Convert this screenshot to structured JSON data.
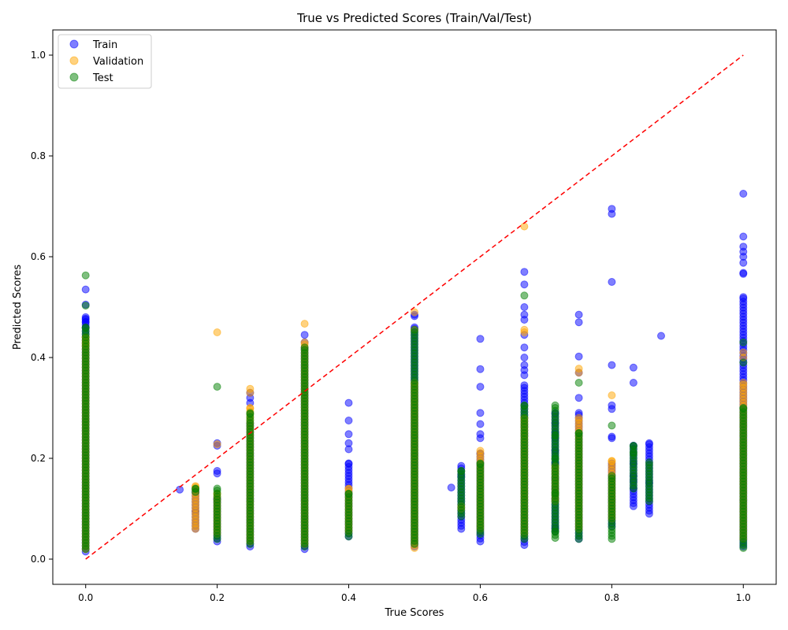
{
  "chart_data": {
    "type": "scatter",
    "title": "True vs Predicted Scores (Train/Val/Test)",
    "xlabel": "True Scores",
    "ylabel": "Predicted Scores",
    "xlim": [
      -0.05,
      1.05
    ],
    "ylim": [
      -0.05,
      1.05
    ],
    "xticks": [
      "0.0",
      "0.2",
      "0.4",
      "0.6",
      "0.8",
      "1.0"
    ],
    "yticks": [
      "0.0",
      "0.2",
      "0.4",
      "0.6",
      "0.8",
      "1.0"
    ],
    "grid": false,
    "legend_position": "upper-left",
    "reference_line": {
      "x": [
        0,
        1
      ],
      "y": [
        0,
        1
      ],
      "color": "#ff0000",
      "style": "dashed"
    },
    "series": [
      {
        "name": "Train",
        "color": "#0000ff",
        "columns": [
          {
            "x": 0.0,
            "min": 0.015,
            "max": 0.48,
            "outliers": [
              0.505,
              0.535,
              0.475,
              0.47,
              0.46
            ]
          },
          {
            "x": 0.143,
            "min": 0.138,
            "max": 0.138,
            "outliers": []
          },
          {
            "x": 0.167,
            "min": 0.06,
            "max": 0.135,
            "outliers": [
              0.095
            ]
          },
          {
            "x": 0.2,
            "min": 0.035,
            "max": 0.12,
            "outliers": [
              0.225,
              0.23,
              0.175,
              0.17
            ]
          },
          {
            "x": 0.25,
            "min": 0.025,
            "max": 0.27,
            "outliers": [
              0.33,
              0.32,
              0.31
            ]
          },
          {
            "x": 0.333,
            "min": 0.02,
            "max": 0.42,
            "outliers": [
              0.445,
              0.43
            ]
          },
          {
            "x": 0.4,
            "min": 0.045,
            "max": 0.19,
            "outliers": [
              0.31,
              0.275,
              0.248,
              0.23,
              0.218
            ]
          },
          {
            "x": 0.5,
            "min": 0.025,
            "max": 0.46,
            "outliers": [
              0.485,
              0.482
            ]
          },
          {
            "x": 0.556,
            "min": 0.142,
            "max": 0.142,
            "outliers": []
          },
          {
            "x": 0.571,
            "min": 0.06,
            "max": 0.185,
            "outliers": [
              0.165
            ]
          },
          {
            "x": 0.6,
            "min": 0.035,
            "max": 0.21,
            "outliers": [
              0.437,
              0.377,
              0.342,
              0.29,
              0.268,
              0.248,
              0.24
            ]
          },
          {
            "x": 0.667,
            "min": 0.028,
            "max": 0.345,
            "outliers": [
              0.57,
              0.545,
              0.5,
              0.485,
              0.475,
              0.445,
              0.42,
              0.4,
              0.385,
              0.375,
              0.365
            ]
          },
          {
            "x": 0.714,
            "min": 0.055,
            "max": 0.29,
            "outliers": [
              0.062,
              0.12,
              0.14,
              0.16,
              0.19,
              0.215,
              0.24,
              0.25,
              0.27
            ]
          },
          {
            "x": 0.75,
            "min": 0.04,
            "max": 0.29,
            "outliers": [
              0.485,
              0.47,
              0.402,
              0.37,
              0.32
            ]
          },
          {
            "x": 0.8,
            "min": 0.065,
            "max": 0.19,
            "outliers": [
              0.695,
              0.685,
              0.55,
              0.385,
              0.305,
              0.298,
              0.243,
              0.24
            ]
          },
          {
            "x": 0.833,
            "min": 0.105,
            "max": 0.225,
            "outliers": [
              0.38,
              0.35,
              0.19,
              0.165,
              0.155,
              0.14
            ]
          },
          {
            "x": 0.857,
            "min": 0.09,
            "max": 0.23,
            "outliers": [
              0.152
            ]
          },
          {
            "x": 0.875,
            "min": 0.443,
            "max": 0.443,
            "outliers": []
          },
          {
            "x": 1.0,
            "min": 0.025,
            "max": 0.52,
            "outliers": [
              0.725,
              0.64,
              0.62,
              0.61,
              0.6,
              0.588,
              0.568,
              0.566
            ]
          }
        ]
      },
      {
        "name": "Validation",
        "color": "#ffa500",
        "columns": [
          {
            "x": 0.0,
            "min": 0.02,
            "max": 0.44,
            "outliers": [
              0.425,
              0.43
            ]
          },
          {
            "x": 0.167,
            "min": 0.065,
            "max": 0.145,
            "outliers": [
              0.06
            ]
          },
          {
            "x": 0.2,
            "min": 0.05,
            "max": 0.13,
            "outliers": [
              0.45,
              0.228
            ]
          },
          {
            "x": 0.25,
            "min": 0.035,
            "max": 0.3,
            "outliers": [
              0.338,
              0.33
            ]
          },
          {
            "x": 0.333,
            "min": 0.03,
            "max": 0.43,
            "outliers": [
              0.467
            ]
          },
          {
            "x": 0.4,
            "min": 0.055,
            "max": 0.14,
            "outliers": []
          },
          {
            "x": 0.5,
            "min": 0.022,
            "max": 0.35,
            "outliers": [
              0.49,
              0.455
            ]
          },
          {
            "x": 0.571,
            "min": 0.1,
            "max": 0.105,
            "outliers": []
          },
          {
            "x": 0.6,
            "min": 0.06,
            "max": 0.215,
            "outliers": []
          },
          {
            "x": 0.667,
            "min": 0.05,
            "max": 0.28,
            "outliers": [
              0.66,
              0.455,
              0.45
            ]
          },
          {
            "x": 0.714,
            "min": 0.115,
            "max": 0.185,
            "outliers": []
          },
          {
            "x": 0.75,
            "min": 0.06,
            "max": 0.28,
            "outliers": [
              0.378,
              0.37
            ]
          },
          {
            "x": 0.8,
            "min": 0.08,
            "max": 0.195,
            "outliers": [
              0.325
            ]
          },
          {
            "x": 1.0,
            "min": 0.04,
            "max": 0.35,
            "outliers": [
              0.41,
              0.4
            ]
          }
        ]
      },
      {
        "name": "Test",
        "color": "#008000",
        "columns": [
          {
            "x": 0.0,
            "min": 0.02,
            "max": 0.46,
            "outliers": [
              0.563,
              0.503
            ]
          },
          {
            "x": 0.167,
            "min": 0.133,
            "max": 0.14,
            "outliers": []
          },
          {
            "x": 0.2,
            "min": 0.04,
            "max": 0.14,
            "outliers": [
              0.342
            ]
          },
          {
            "x": 0.25,
            "min": 0.03,
            "max": 0.29,
            "outliers": []
          },
          {
            "x": 0.333,
            "min": 0.025,
            "max": 0.42,
            "outliers": []
          },
          {
            "x": 0.4,
            "min": 0.045,
            "max": 0.13,
            "outliers": []
          },
          {
            "x": 0.5,
            "min": 0.03,
            "max": 0.455,
            "outliers": []
          },
          {
            "x": 0.571,
            "min": 0.085,
            "max": 0.175,
            "outliers": []
          },
          {
            "x": 0.6,
            "min": 0.05,
            "max": 0.19,
            "outliers": []
          },
          {
            "x": 0.667,
            "min": 0.04,
            "max": 0.305,
            "outliers": [
              0.523
            ]
          },
          {
            "x": 0.714,
            "min": 0.042,
            "max": 0.305,
            "outliers": [
              0.055,
              0.13,
              0.2,
              0.245
            ]
          },
          {
            "x": 0.75,
            "min": 0.04,
            "max": 0.25,
            "outliers": [
              0.35
            ]
          },
          {
            "x": 0.8,
            "min": 0.04,
            "max": 0.165,
            "outliers": [
              0.265
            ]
          },
          {
            "x": 0.833,
            "min": 0.14,
            "max": 0.225,
            "outliers": [
              0.21
            ]
          },
          {
            "x": 0.857,
            "min": 0.115,
            "max": 0.192,
            "outliers": []
          },
          {
            "x": 1.0,
            "min": 0.022,
            "max": 0.3,
            "outliers": [
              0.43,
              0.39
            ]
          }
        ]
      }
    ]
  }
}
